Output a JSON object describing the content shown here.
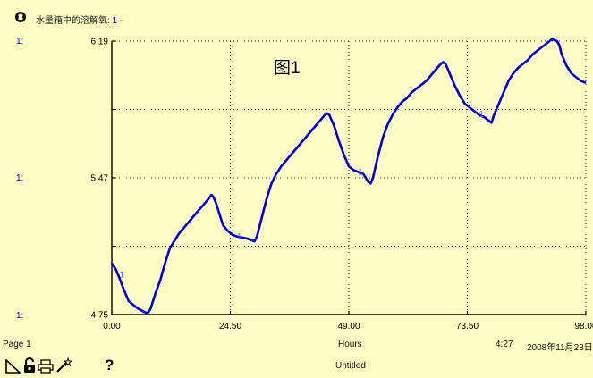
{
  "header": {
    "title": "水量箱中的溶解氧: ",
    "series_ref": "1 -"
  },
  "side_labels": [
    "1:",
    "1:",
    "1:"
  ],
  "footer": {
    "page": "Page 1",
    "x_unit": "Hours",
    "time": "4:27",
    "date": "2008年11月23日",
    "doc_name": "Untitled"
  },
  "icons": {
    "corner": "graph-pad-icon",
    "lock": "lock-icon",
    "print": "print-icon",
    "wand": "magic-wand-icon",
    "help": "help-icon",
    "help_glyph": "?"
  },
  "colors": {
    "background": "#fcfcc4",
    "series": "#0000dd",
    "grid": "#333333"
  },
  "chart_data": {
    "type": "line",
    "title": "图1",
    "xlabel": "Hours",
    "ylabel": "",
    "xlim": [
      0,
      98
    ],
    "ylim": [
      4.75,
      6.19
    ],
    "x_ticks": [
      "0.00",
      "24.50",
      "49.00",
      "73.50",
      "98.00"
    ],
    "y_ticks": [
      "4.75",
      "5.47",
      "6.19"
    ],
    "grid": true,
    "series": [
      {
        "marker": "1",
        "marker_x": [
          1.2,
          25.5,
          50.5,
          75.5
        ],
        "x": [
          0,
          0.8,
          1.6,
          2.5,
          3.5,
          4.5,
          5.5,
          6.3,
          7,
          7.5,
          8,
          9,
          10,
          11,
          12,
          13,
          14,
          15,
          16,
          17,
          18,
          19,
          20,
          20.6,
          21,
          21.5,
          22,
          22.5,
          23,
          24,
          25,
          26,
          27,
          28,
          29,
          29.5,
          30,
          31,
          32,
          33,
          34,
          35,
          36,
          37,
          38,
          39,
          40,
          41,
          42,
          43,
          44,
          44.5,
          45,
          46,
          47,
          48,
          49,
          50,
          51,
          52,
          53,
          53.5,
          54,
          55,
          56,
          57,
          58,
          59,
          60,
          61,
          62,
          63,
          64,
          65,
          66,
          67,
          68,
          68.5,
          69,
          70,
          71,
          72,
          73,
          74,
          75,
          76,
          77,
          78,
          78.5,
          79,
          80,
          81,
          82,
          83,
          84,
          85,
          86,
          87,
          88,
          89,
          90,
          91,
          92,
          92.5,
          93,
          94,
          95,
          96,
          97,
          98
        ],
        "y": [
          5.02,
          4.99,
          4.94,
          4.88,
          4.82,
          4.8,
          4.78,
          4.77,
          4.76,
          4.76,
          4.78,
          4.86,
          4.93,
          5.02,
          5.1,
          5.14,
          5.18,
          5.21,
          5.24,
          5.27,
          5.3,
          5.33,
          5.36,
          5.38,
          5.37,
          5.34,
          5.3,
          5.26,
          5.22,
          5.19,
          5.17,
          5.16,
          5.155,
          5.15,
          5.14,
          5.135,
          5.16,
          5.26,
          5.36,
          5.44,
          5.49,
          5.53,
          5.56,
          5.59,
          5.62,
          5.65,
          5.68,
          5.71,
          5.74,
          5.77,
          5.8,
          5.81,
          5.8,
          5.74,
          5.66,
          5.59,
          5.53,
          5.51,
          5.5,
          5.49,
          5.45,
          5.44,
          5.47,
          5.58,
          5.68,
          5.75,
          5.8,
          5.84,
          5.87,
          5.89,
          5.92,
          5.94,
          5.96,
          5.98,
          6.01,
          6.04,
          6.07,
          6.08,
          6.07,
          6.01,
          5.95,
          5.9,
          5.86,
          5.84,
          5.82,
          5.8,
          5.79,
          5.77,
          5.76,
          5.8,
          5.86,
          5.92,
          5.98,
          6.02,
          6.05,
          6.07,
          6.09,
          6.12,
          6.14,
          6.16,
          6.18,
          6.2,
          6.19,
          6.17,
          6.12,
          6.06,
          6.02,
          6.0,
          5.98,
          5.97
        ]
      }
    ]
  }
}
